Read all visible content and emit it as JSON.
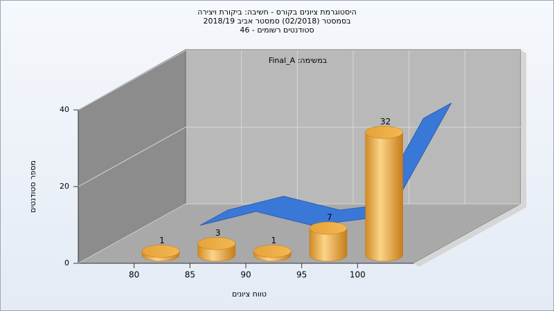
{
  "chart_data": {
    "type": "histogram",
    "title": [
      "היסטוגרמת ציונים בקורס - חשיבה: ביקורת ויצירה",
      "בסמסטר (02/2018) סמסטר אביב 2018/19",
      "סטודנטים רשומים - 46"
    ],
    "annotation": "במשימה: Final_A",
    "x_label": "טווח ציונים",
    "y_label": "מספר סטודנטים",
    "bins": [
      80,
      85,
      90,
      95,
      100,
      105
    ],
    "values": [
      1,
      3,
      1,
      7,
      32
    ],
    "color": "#e8a33a",
    "trend": {
      "values": [
        3,
        7,
        3,
        5,
        34
      ],
      "color": "#3a78d8"
    },
    "xlim": [
      75,
      105
    ],
    "xticks": [
      80,
      85,
      90,
      95,
      100
    ],
    "ylim": [
      0,
      40
    ],
    "yticks": [
      0,
      20,
      40
    ],
    "grid": true
  }
}
